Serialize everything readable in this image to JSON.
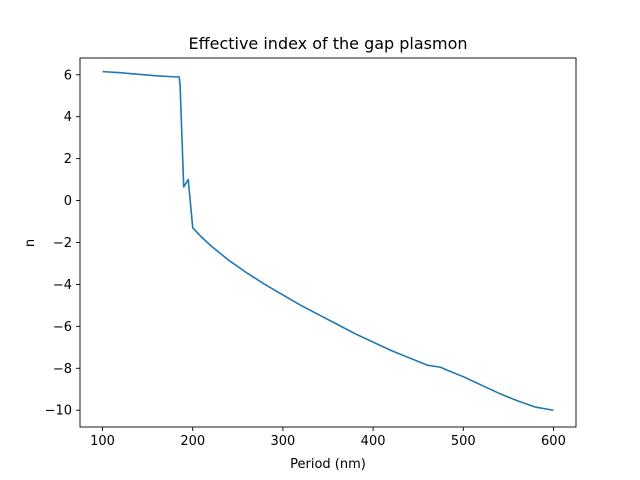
{
  "chart_data": {
    "type": "line",
    "title": "Effective index of the gap plasmon",
    "xlabel": "Period (nm)",
    "ylabel": "n",
    "xlim": [
      75,
      625
    ],
    "ylim": [
      -10.8,
      6.8
    ],
    "xticks": [
      100,
      200,
      300,
      400,
      500,
      600
    ],
    "xtick_labels": [
      "100",
      "200",
      "300",
      "400",
      "500",
      "600"
    ],
    "yticks": [
      6,
      4,
      2,
      0,
      -2,
      -4,
      -6,
      -8,
      -10
    ],
    "ytick_labels": [
      "6",
      "4",
      "2",
      "0",
      "−2",
      "−4",
      "−6",
      "−8",
      "−10"
    ],
    "grid": false,
    "legend": "none",
    "series": [
      {
        "color": "#1f77b4",
        "x": [
          100,
          120,
          140,
          160,
          180,
          185,
          186,
          190,
          195,
          200,
          210,
          220,
          240,
          260,
          280,
          300,
          320,
          340,
          360,
          380,
          400,
          420,
          440,
          460,
          475,
          480,
          500,
          520,
          540,
          560,
          580,
          600
        ],
        "y": [
          6.15,
          6.1,
          6.02,
          5.95,
          5.9,
          5.9,
          5.5,
          0.65,
          1.0,
          -1.3,
          -1.75,
          -2.15,
          -2.85,
          -3.45,
          -4.0,
          -4.5,
          -5.0,
          -5.45,
          -5.9,
          -6.35,
          -6.75,
          -7.15,
          -7.5,
          -7.85,
          -7.95,
          -8.05,
          -8.4,
          -8.8,
          -9.2,
          -9.55,
          -9.85,
          -10.0
        ]
      }
    ]
  }
}
